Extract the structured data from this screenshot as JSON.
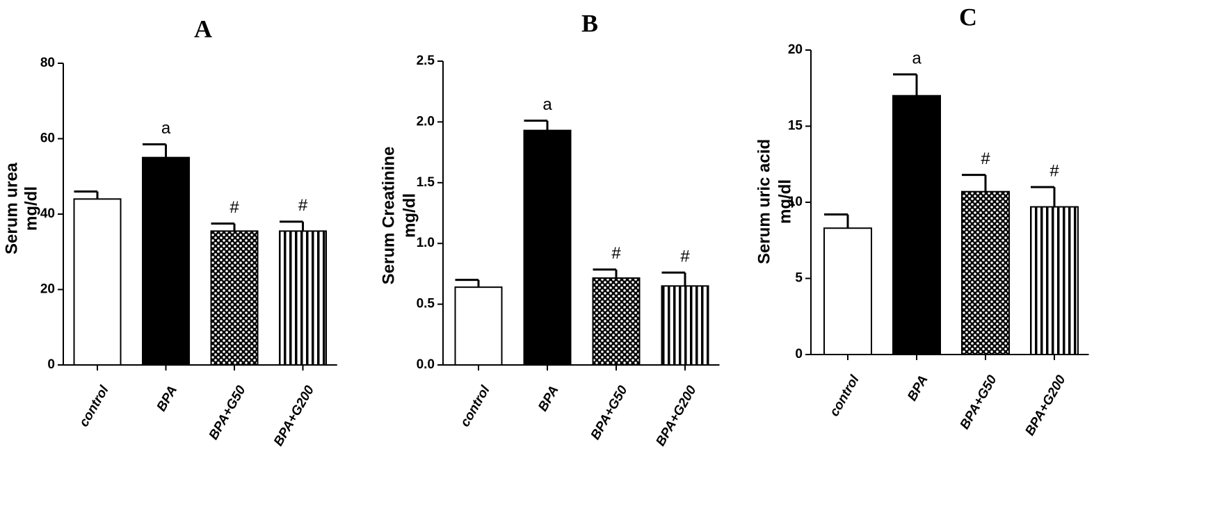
{
  "chart_data": [
    {
      "type": "bar",
      "title": "A",
      "ylabel": [
        "Serum urea",
        "mg/dl"
      ],
      "categories": [
        "control",
        "BPA",
        "BPA+G50",
        "BPA+G200"
      ],
      "values": [
        44,
        55,
        35.5,
        35.5
      ],
      "errors": [
        2,
        3.5,
        2,
        2.5
      ],
      "bar_labels": [
        null,
        "a",
        "#",
        "#"
      ],
      "fills": [
        "white",
        "black",
        "dots",
        "vertical-lines"
      ],
      "ylim": [
        0,
        80
      ],
      "yticks": [
        0,
        20,
        40,
        60,
        80
      ]
    },
    {
      "type": "bar",
      "title": "B",
      "ylabel": [
        "Serum Creatinine",
        "mg/dl"
      ],
      "categories": [
        "control",
        "BPA",
        "BPA+G50",
        "BPA+G200"
      ],
      "values": [
        0.64,
        1.93,
        0.715,
        0.65
      ],
      "errors": [
        0.06,
        0.08,
        0.07,
        0.11
      ],
      "bar_labels": [
        null,
        "a",
        "#",
        "#"
      ],
      "fills": [
        "white",
        "black",
        "dots",
        "vertical-lines"
      ],
      "ylim": [
        0,
        2.5
      ],
      "yticks": [
        {
          "value": 0,
          "label": "0.0"
        },
        0.5,
        {
          "value": 1,
          "label": "1.0"
        },
        1.5,
        {
          "value": 2,
          "label": "2.0"
        },
        2.5
      ]
    },
    {
      "type": "bar",
      "title": "C",
      "ylabel": [
        "Serum uric acid",
        "mg/dl"
      ],
      "categories": [
        "control",
        "BPA",
        "BPA+G50",
        "BPA+G200"
      ],
      "values": [
        8.3,
        17,
        10.7,
        9.7
      ],
      "errors": [
        0.9,
        1.4,
        1.1,
        1.3
      ],
      "bar_labels": [
        null,
        "a",
        "#",
        "#"
      ],
      "fills": [
        "white",
        "black",
        "dots",
        "vertical-lines"
      ],
      "ylim": [
        0,
        20
      ],
      "yticks": [
        0,
        5,
        10,
        15,
        20
      ]
    }
  ]
}
